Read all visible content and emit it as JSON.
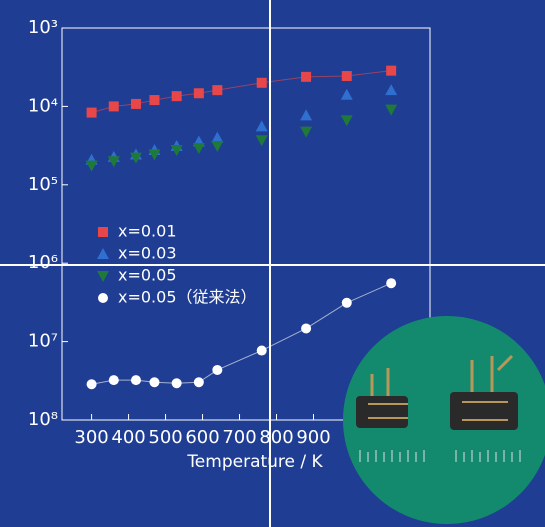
{
  "chart_data": {
    "type": "scatter",
    "xlabel": "Temperature / K",
    "xlim": [
      220,
      1215
    ],
    "xticks": [
      300,
      400,
      500,
      600,
      700,
      800,
      900
    ],
    "ylim": [
      100000000,
      1000
    ],
    "ylog": true,
    "yticks": [
      {
        "value": 1000,
        "label": "10³"
      },
      {
        "value": 10000,
        "label": "10⁴"
      },
      {
        "value": 100000,
        "label": "10⁵"
      },
      {
        "value": 1000000,
        "label": "10⁶"
      },
      {
        "value": 10000000,
        "label": "10⁷"
      },
      {
        "value": 100000000,
        "label": "10⁸"
      }
    ],
    "legend": "center-left",
    "series": [
      {
        "name": "x=0.01",
        "color": "#e8474a",
        "marker": "square",
        "line": true,
        "x": [
          300,
          360,
          420,
          470,
          530,
          590,
          640,
          760,
          880,
          990,
          1110
        ],
        "values": [
          12000,
          10000,
          9300,
          8300,
          7400,
          6800,
          6200,
          5000,
          4200,
          4100,
          3500
        ]
      },
      {
        "name": "x=0.03",
        "color": "#2f6fd0",
        "marker": "triangle-up",
        "line": false,
        "x": [
          300,
          360,
          420,
          470,
          530,
          590,
          640,
          760,
          880,
          990,
          1110
        ],
        "values": [
          48000,
          44000,
          41000,
          36000,
          32000,
          28000,
          25000,
          18000,
          13000,
          7100,
          6200
        ]
      },
      {
        "name": "x=0.05",
        "color": "#1f7a3a",
        "marker": "triangle-down",
        "line": false,
        "x": [
          300,
          360,
          420,
          470,
          530,
          590,
          640,
          760,
          880,
          990,
          1110
        ],
        "values": [
          57000,
          50000,
          45000,
          41000,
          36000,
          34000,
          32000,
          27000,
          21000,
          15000,
          11000
        ]
      },
      {
        "name": "x=0.05（従来法）",
        "color": "#ffffff",
        "marker": "circle",
        "line": true,
        "x": [
          300,
          360,
          420,
          470,
          530,
          590,
          640,
          760,
          880,
          990,
          1110
        ],
        "values": [
          35000000,
          31000000,
          31000000,
          33000000,
          34000000,
          33000000,
          23000000,
          13000000,
          6800000,
          3200000,
          1800000
        ]
      }
    ]
  }
}
